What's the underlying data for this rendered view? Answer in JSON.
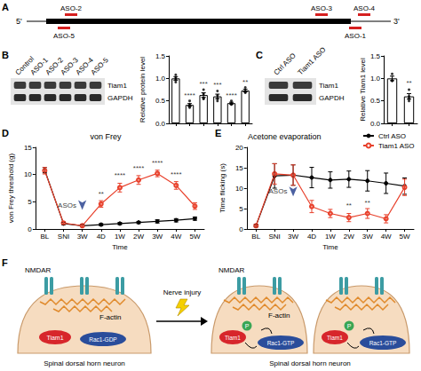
{
  "schematic": {
    "panel_label": "A",
    "five_prime": "5'",
    "three_prime": "3'",
    "aso_above": [
      "ASO-2",
      "ASO-3",
      "ASO-4"
    ],
    "aso_below": [
      "ASO-5",
      "ASO-1"
    ]
  },
  "chart_data": [
    {
      "panel_label": "B",
      "type": "bar",
      "ylabel": "Relative protein level",
      "blot_lanes": [
        "Control",
        "ASO-1",
        "ASO-2",
        "ASO-3",
        "ASO-4",
        "ASO-5"
      ],
      "blot_rows": [
        "Tiam1",
        "GAPDH"
      ],
      "categories": [
        null,
        null,
        null,
        null,
        null,
        null
      ],
      "values": [
        1.0,
        0.41,
        0.63,
        0.6,
        0.45,
        0.73
      ],
      "errors": [
        0.04,
        0.03,
        0.05,
        0.05,
        0.02,
        0.03
      ],
      "points": [
        [
          1.08,
          0.98,
          0.92,
          1.02
        ],
        [
          0.5,
          0.42,
          0.38,
          0.35
        ],
        [
          0.75,
          0.65,
          0.55,
          0.55
        ],
        [
          0.72,
          0.62,
          0.55,
          0.5
        ],
        [
          0.5,
          0.45,
          0.42,
          0.43
        ],
        [
          0.8,
          0.72,
          0.7,
          0.68
        ]
      ],
      "annotations": [
        {
          "x": 1,
          "y": 0.62,
          "text": "****"
        },
        {
          "x": 2,
          "y": 0.88,
          "text": "***"
        },
        {
          "x": 3,
          "y": 0.85,
          "text": "***"
        },
        {
          "x": 4,
          "y": 0.62,
          "text": "****"
        },
        {
          "x": 5,
          "y": 0.92,
          "text": "**"
        }
      ],
      "color": "#ffffff",
      "ylim": [
        0,
        1.5
      ],
      "yticks": [
        {
          "value": 0,
          "label": "0.0"
        },
        {
          "value": 0.5,
          "label": "0.5"
        },
        {
          "value": 1,
          "label": "1.0"
        },
        {
          "value": 1.5,
          "label": "1.5"
        }
      ],
      "grid": false,
      "tick_labels": "y"
    },
    {
      "panel_label": "C",
      "type": "bar",
      "ylabel": "Relative Tiam1 level",
      "blot_lanes": [
        "Ctrl ASO",
        "Tiam1 ASO"
      ],
      "blot_rows": [
        "Tiam1",
        "GAPDH"
      ],
      "categories": [
        null,
        null
      ],
      "values": [
        1.0,
        0.6
      ],
      "errors": [
        0.05,
        0.06
      ],
      "points": [
        [
          1.1,
          0.95,
          0.95
        ],
        [
          0.75,
          0.6,
          0.5,
          0.55
        ]
      ],
      "annotations": [
        {
          "x": 1,
          "y": 0.9,
          "text": "**"
        }
      ],
      "color": "#ffffff",
      "ylim": [
        0,
        1.5
      ],
      "yticks": [
        {
          "value": 0,
          "label": "0.0"
        },
        {
          "value": 0.5,
          "label": "0.5"
        },
        {
          "value": 1,
          "label": "1.0"
        },
        {
          "value": 1.5,
          "label": "1.5"
        }
      ],
      "grid": false,
      "tick_labels": "y"
    },
    {
      "panel_label": "D",
      "type": "line",
      "title": "von Frey",
      "xlabel": "Time",
      "ylabel": "von Frey threshold (g)",
      "categories": [
        "BL",
        "SNI",
        "3W",
        "4D",
        "1W",
        "2W",
        "3W",
        "4W",
        "5W"
      ],
      "series": [
        {
          "name": "Ctrl ASO",
          "color": "#000000",
          "marker": "circle",
          "line_style": "solid",
          "values": [
            10.8,
            1.0,
            0.6,
            0.8,
            1.0,
            1.2,
            1.4,
            1.6,
            1.9
          ],
          "errors": [
            0.5,
            0.2,
            0.2,
            0.2,
            0.2,
            0.2,
            0.3,
            0.3,
            0.3
          ]
        },
        {
          "name": "Tiam1 ASO",
          "color": "#e8412c",
          "marker": "hollow",
          "line_style": "solid",
          "values": [
            10.7,
            1.1,
            0.6,
            4.6,
            7.6,
            9.0,
            10.2,
            8.0,
            4.2
          ],
          "errors": [
            0.6,
            0.2,
            0.2,
            0.6,
            0.8,
            0.8,
            0.6,
            0.7,
            0.6
          ]
        }
      ],
      "annotations": [
        {
          "x": 3,
          "y": 6.5,
          "text": "**"
        },
        {
          "x": 4,
          "y": 9.8,
          "text": "****"
        },
        {
          "x": 5,
          "y": 11.2,
          "text": "****"
        },
        {
          "x": 6,
          "y": 12.2,
          "text": "****"
        },
        {
          "x": 7,
          "y": 10.0,
          "text": "****"
        }
      ],
      "arrow": {
        "x": 2,
        "y": 3.5,
        "text": "ASOs"
      },
      "ylim": [
        0,
        15
      ],
      "yticks": [
        0,
        5,
        10,
        15
      ],
      "grid": false
    },
    {
      "panel_label": "E",
      "type": "line",
      "title": "Acetone evaporation",
      "xlabel": "Time",
      "ylabel": "Time flicking (s)",
      "categories": [
        "BL",
        "SNI",
        "3W",
        "4D",
        "1W",
        "2W",
        "3W",
        "4W",
        "5W"
      ],
      "series": [
        {
          "name": "Ctrl ASO",
          "color": "#000000",
          "marker": "circle",
          "line_style": "solid",
          "values": [
            0.8,
            13.0,
            13.2,
            12.6,
            12.0,
            12.2,
            11.8,
            11.2,
            10.5
          ],
          "errors": [
            0.3,
            3.0,
            2.5,
            2.5,
            2.0,
            2.0,
            2.5,
            2.5,
            2.0
          ]
        },
        {
          "name": "Tiam1 ASO",
          "color": "#e8412c",
          "marker": "hollow",
          "line_style": "solid",
          "values": [
            0.8,
            13.5,
            13.2,
            5.5,
            3.8,
            2.8,
            3.8,
            2.5,
            10.2
          ],
          "errors": [
            0.3,
            2.5,
            2.5,
            1.5,
            1.0,
            1.0,
            1.2,
            1.0,
            2.0
          ]
        }
      ],
      "annotations": [
        {
          "x": 5,
          "y": 5.8,
          "text": "**"
        },
        {
          "x": 6,
          "y": 6.5,
          "text": "**"
        }
      ],
      "arrow": {
        "x": 2,
        "y": 8,
        "text": "ASOs"
      },
      "ylim": [
        0,
        20
      ],
      "yticks": [
        0,
        5,
        10,
        15,
        20
      ],
      "grid": false,
      "legend": "top-right"
    }
  ],
  "diagram": {
    "panel_label": "F",
    "before": {
      "receptor": "NMDAR",
      "actin": "F-actin",
      "gef": "Tiam1",
      "rac": "Rac1-GDP",
      "cell": "Spinal dorsal horn neuron"
    },
    "injury": "Nerve injury",
    "after": {
      "receptor": "NMDAR",
      "actin": "F-actin",
      "gef": "Tiam1",
      "phospho": "P",
      "rac": "Rac1-GTP",
      "cell": "Spinal dorsal horn neuron"
    }
  }
}
